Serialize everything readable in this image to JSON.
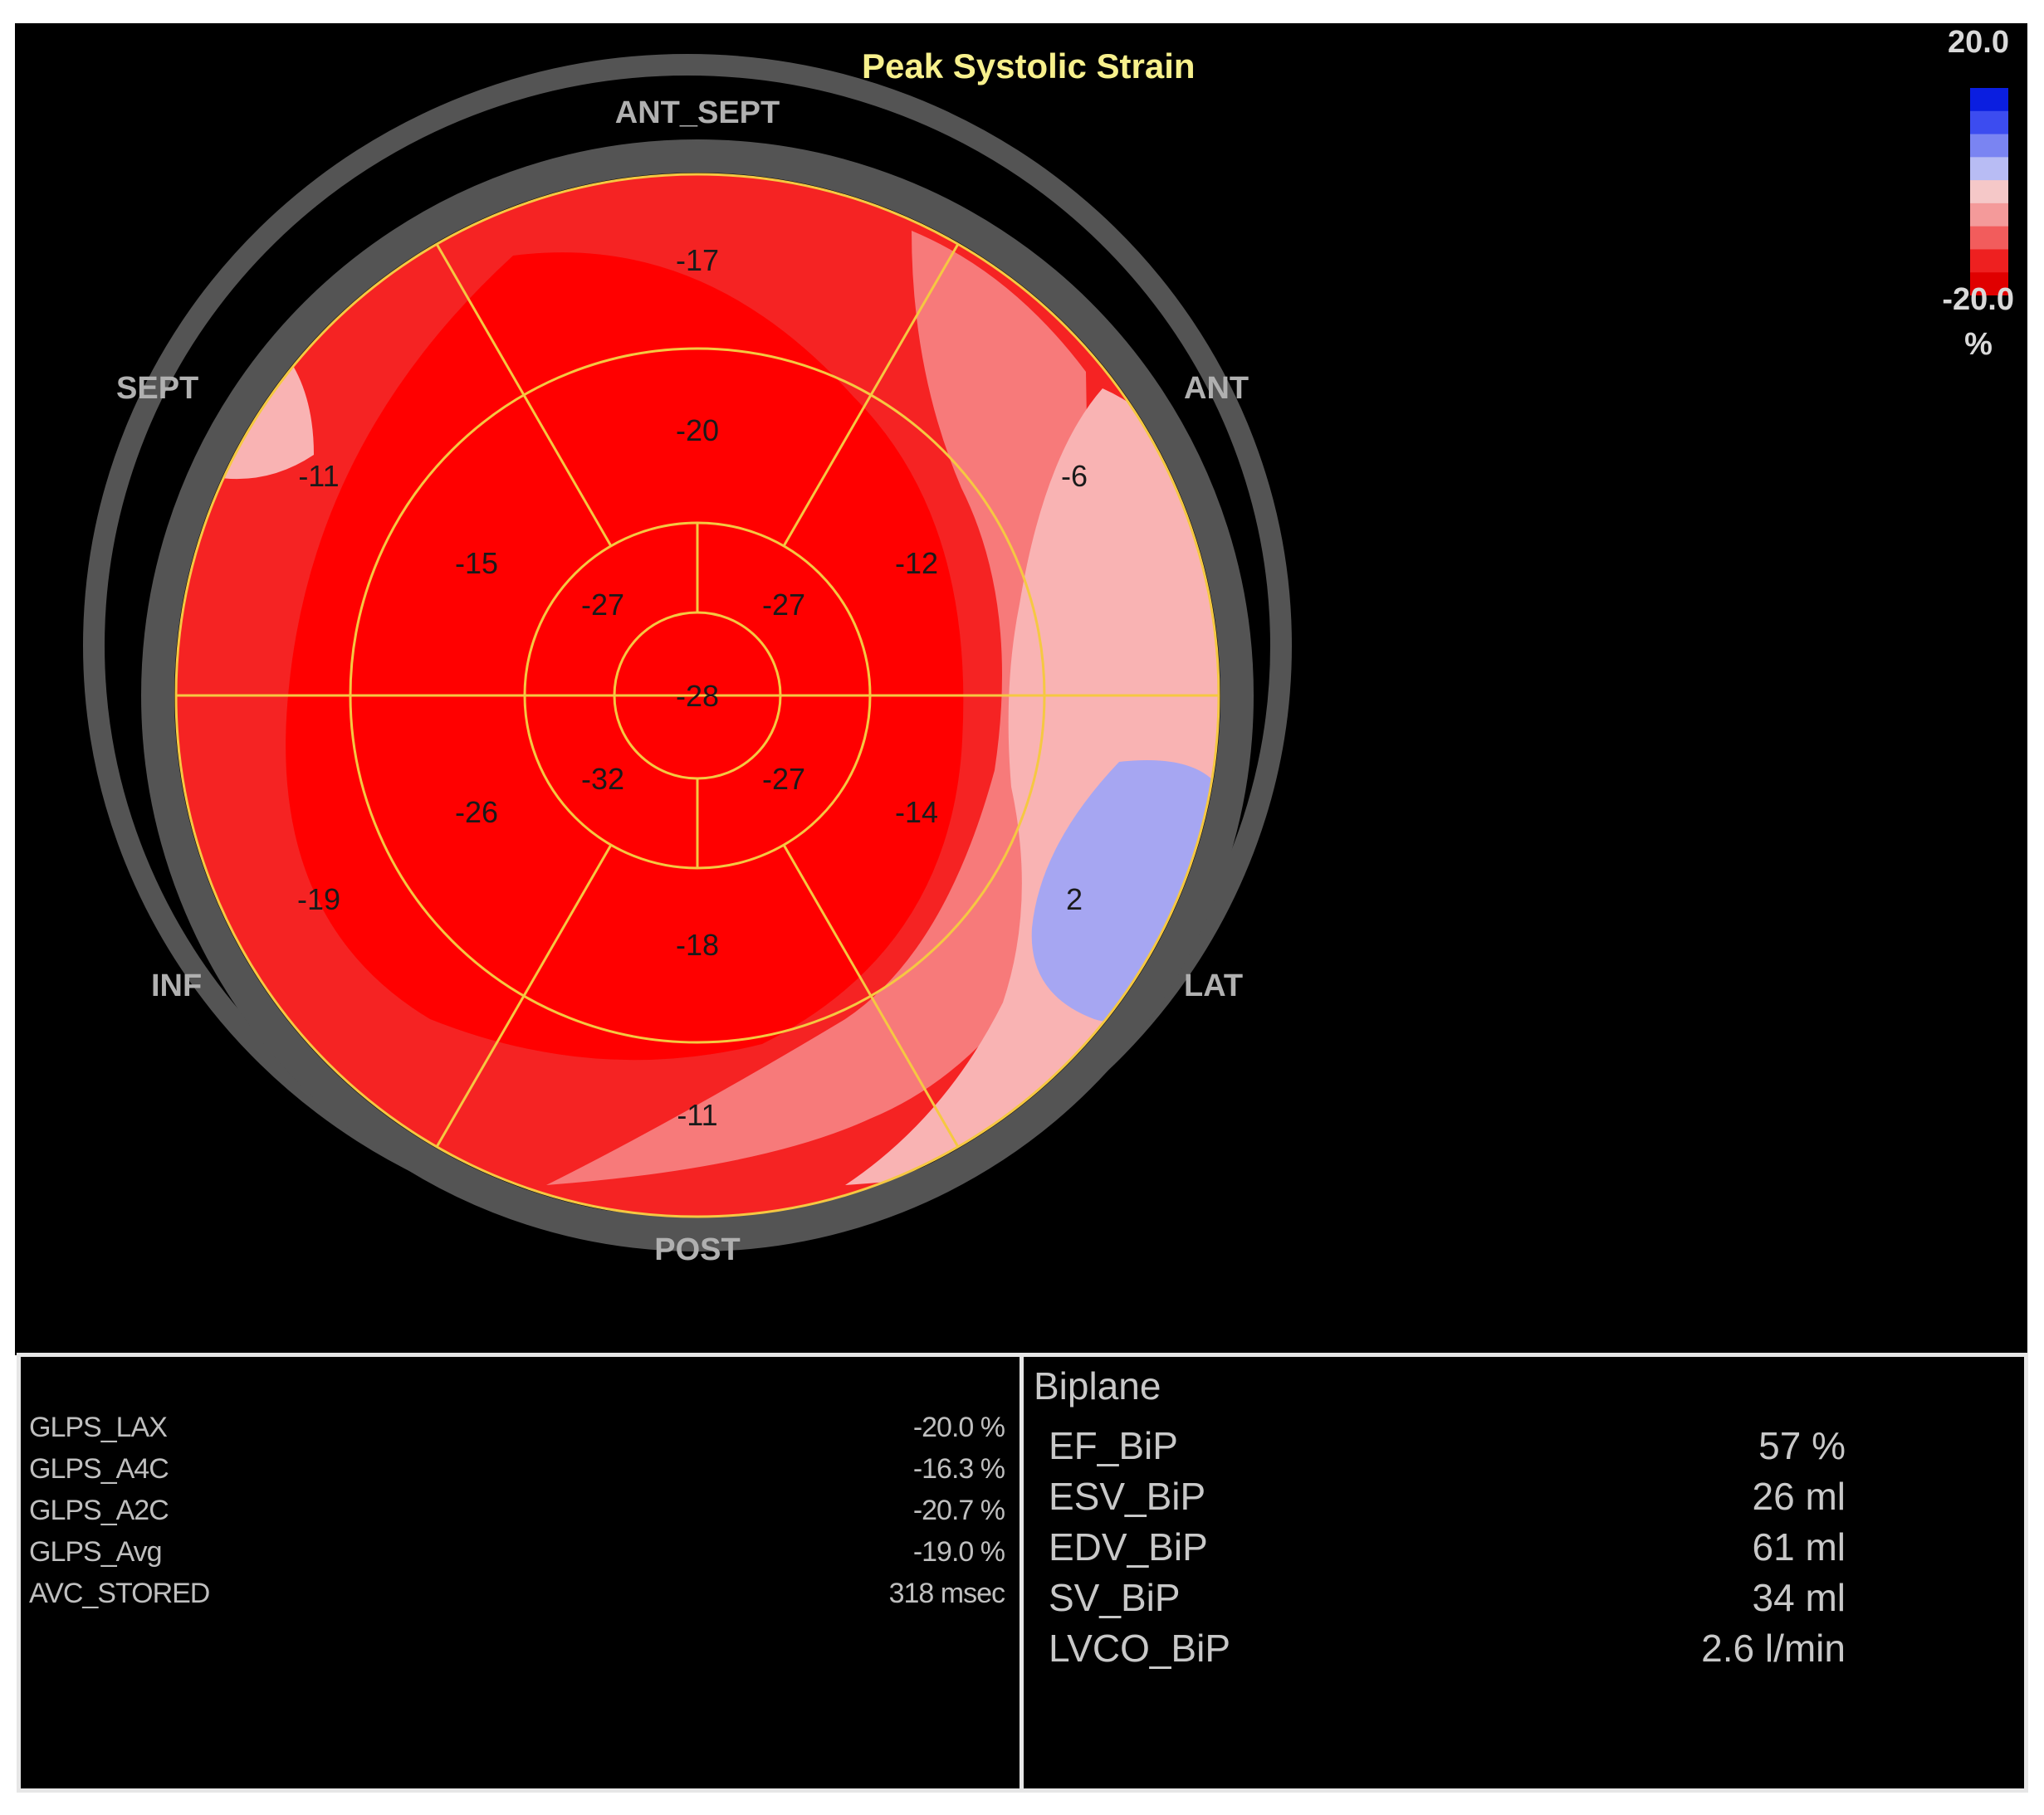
{
  "title": "Peak Systolic Strain",
  "orientation": {
    "top": "ANT_SEPT",
    "upper_left": "SEPT",
    "upper_right": "ANT",
    "lower_left": "INF",
    "lower_right": "LAT",
    "bottom": "POST"
  },
  "segments": {
    "apex": "-28",
    "apical_ul": "-27",
    "apical_ur": "-27",
    "apical_ll": "-32",
    "apical_lr": "-27",
    "mid_top": "-20",
    "mid_ul": "-15",
    "mid_ur": "-12",
    "mid_ll": "-26",
    "mid_lr": "-14",
    "mid_bottom": "-18",
    "basal_top": "-17",
    "basal_ul": "-11",
    "basal_ur": "-6",
    "basal_ll": "-19",
    "basal_lr": "2",
    "basal_bottom": "-11"
  },
  "colorbar": {
    "max": "20.0",
    "min": "-20.0",
    "unit": "%",
    "colors": [
      "#0a1ee0",
      "#3c4cf0",
      "#7a84f2",
      "#b8bcf4",
      "#f5c8c8",
      "#f49a9a",
      "#f25c5c",
      "#ee2020",
      "#e00000"
    ]
  },
  "strain_colors": {
    "deep_red": "#ff0000",
    "red": "#f52323",
    "light_red": "#f77a7a",
    "pink": "#f9b3b3",
    "blue": "#a6a6f2",
    "segment_lines": "#f5c842",
    "ring": "#545454",
    "label_text": "#b0b0b0"
  },
  "glps": [
    {
      "label": "GLPS_LAX",
      "value": "-20.0 %"
    },
    {
      "label": "GLPS_A4C",
      "value": "-16.3 %"
    },
    {
      "label": "GLPS_A2C",
      "value": "-20.7 %"
    },
    {
      "label": "GLPS_Avg",
      "value": "-19.0 %"
    },
    {
      "label": "AVC_STORED",
      "value": "318 msec"
    }
  ],
  "biplane": {
    "title": "Biplane",
    "rows": [
      {
        "label": "EF_BiP",
        "value": "57 %"
      },
      {
        "label": "ESV_BiP",
        "value": "26 ml"
      },
      {
        "label": "EDV_BiP",
        "value": "61 ml"
      },
      {
        "label": "SV_BiP",
        "value": "34 ml"
      },
      {
        "label": "LVCO_BiP",
        "value": "2.6 l/min"
      }
    ]
  }
}
